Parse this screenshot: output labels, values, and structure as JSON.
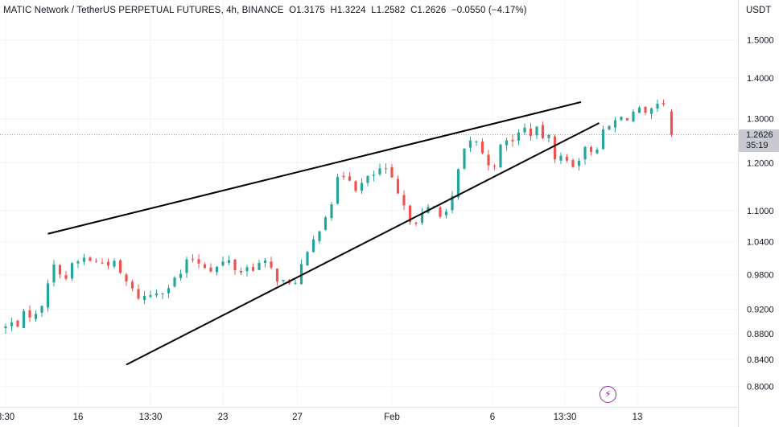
{
  "header": {
    "symbol": "MATIC Network / TetherUS PERPETUAL FUTURES",
    "interval": "4h",
    "exchange": "BINANCE",
    "open": "O1.3175",
    "high": "H1.3224",
    "low": "L1.2582",
    "close": "C1.2626",
    "change": "−0.0550 (−4.17%)"
  },
  "price_axis": {
    "currency": "USDT",
    "last_price": "1.2626",
    "countdown": "35:19"
  },
  "colors": {
    "up": "#26a69a",
    "down": "#ef5350",
    "text": "#131722",
    "trendline": "#000000",
    "icon": "#9c27b0"
  },
  "icons": {
    "flash": "lightning-bolt-icon"
  },
  "chart_data": {
    "type": "candlestick",
    "title": "MATIC Network / TetherUS PERPETUAL FUTURES, 4h, BINANCE",
    "price_scale": "log",
    "y_ticks": [
      "1.5000",
      "1.4000",
      "1.3000",
      "1.2000",
      "1.1000",
      "1.0400",
      "0.9800",
      "0.9200",
      "0.8800",
      "0.8400",
      "0.8000"
    ],
    "y_tick_values": [
      1.5,
      1.4,
      1.3,
      1.2,
      1.1,
      1.04,
      0.98,
      0.92,
      0.88,
      0.84,
      0.8
    ],
    "x_ticks": [
      "3:30",
      "16",
      "13:30",
      "23",
      "27",
      "Feb",
      "6",
      "13:30",
      "13"
    ],
    "x_tick_positions_bar_index": [
      0,
      36,
      72,
      108,
      145,
      192,
      242,
      278,
      314
    ],
    "last_price": 1.2626,
    "candles": [],
    "trendlines": [
      {
        "name": "upper",
        "from": {
          "bar": 21,
          "price": 1.055
        },
        "to": {
          "bar": 286,
          "price": 1.34
        }
      },
      {
        "name": "lower",
        "from": {
          "bar": 60,
          "price": 0.832
        },
        "to": {
          "bar": 295,
          "price": 1.29
        }
      }
    ]
  }
}
